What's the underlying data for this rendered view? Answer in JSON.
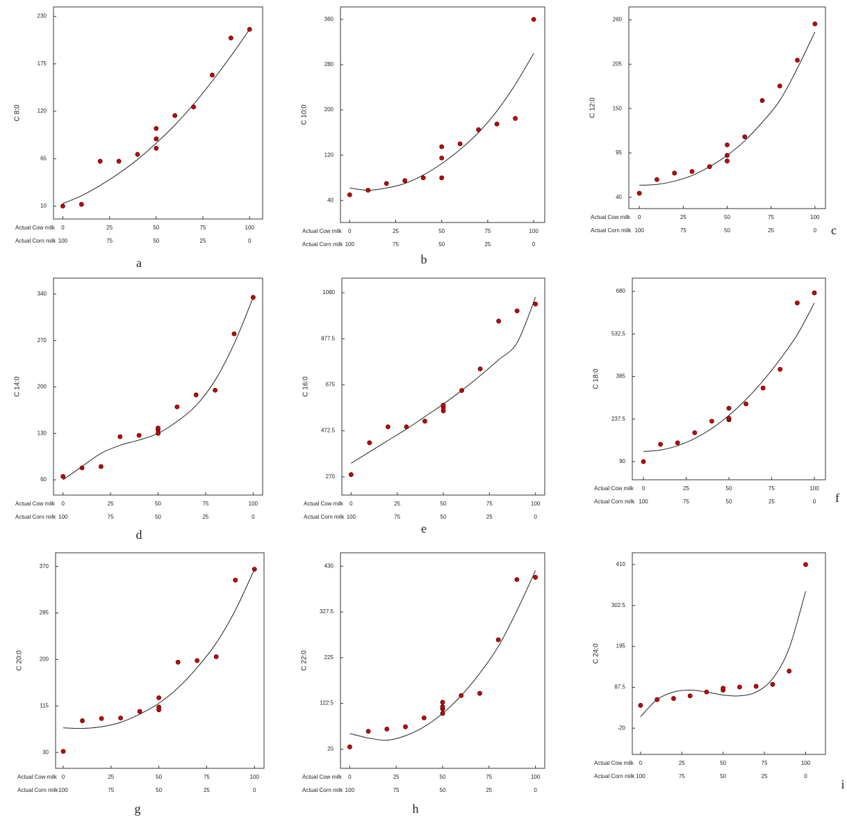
{
  "chart_data": [
    {
      "type": "scatter",
      "panel": "a",
      "ylabel": "C 8:0",
      "xlabel": "Actual Cow milk",
      "x2label": "Actual Corn milk",
      "color": "#cc0000",
      "x": [
        0,
        10,
        20,
        30,
        40,
        50,
        50,
        50,
        60,
        70,
        80,
        90,
        100
      ],
      "y": [
        10,
        12,
        62,
        62,
        70,
        100,
        88,
        77,
        115,
        125,
        162,
        205,
        215
      ],
      "fit": {
        "x": [
          0,
          10,
          20,
          30,
          40,
          50,
          60,
          70,
          80,
          90,
          100
        ],
        "y": [
          13,
          22,
          34,
          48,
          64,
          83,
          104,
          128,
          155,
          184,
          215
        ]
      },
      "xlim": [
        -5,
        107
      ],
      "ylim": [
        -5,
        241
      ],
      "xticks": [
        0,
        25,
        50,
        75,
        100
      ],
      "yticks": [
        10,
        65,
        120,
        175,
        230
      ],
      "x2ticks": [
        {
          "value": 0,
          "label": "100"
        },
        {
          "value": 25,
          "label": "75"
        },
        {
          "value": 50,
          "label": "50"
        },
        {
          "value": 75,
          "label": "25"
        },
        {
          "value": 100,
          "label": "0"
        }
      ]
    },
    {
      "type": "scatter",
      "panel": "b",
      "ylabel": "C 10:0",
      "xlabel": "Actual Cow milk",
      "x2label": "Actual Corn milk",
      "color": "#cc0000",
      "x": [
        0,
        10,
        20,
        30,
        40,
        50,
        50,
        50,
        60,
        70,
        80,
        90,
        100
      ],
      "y": [
        50,
        58,
        70,
        75,
        80,
        80,
        115,
        135,
        140,
        165,
        175,
        185,
        360
      ],
      "fit": {
        "x": [
          0,
          10,
          20,
          30,
          40,
          50,
          60,
          70,
          80,
          90,
          100
        ],
        "y": [
          62,
          58,
          62,
          70,
          85,
          105,
          130,
          160,
          198,
          245,
          300
        ]
      },
      "xlim": [
        -5,
        106
      ],
      "ylim": [
        1,
        382
      ],
      "xticks": [
        0,
        25,
        50,
        75,
        100
      ],
      "yticks": [
        40,
        120,
        200,
        280,
        360
      ],
      "x2ticks": [
        {
          "value": 0,
          "label": "100"
        },
        {
          "value": 25,
          "label": "75"
        },
        {
          "value": 50,
          "label": "50"
        },
        {
          "value": 75,
          "label": "25"
        },
        {
          "value": 100,
          "label": "0"
        }
      ]
    },
    {
      "type": "scatter",
      "panel": "c",
      "ylabel": "C 12:0",
      "xlabel": "Actual Cow milk",
      "x2label": "Actual Corn milk",
      "color": "#cc0000",
      "x": [
        0,
        10,
        20,
        30,
        40,
        50,
        50,
        50,
        60,
        70,
        80,
        90,
        100
      ],
      "y": [
        45,
        62,
        70,
        72,
        78,
        85,
        92,
        105,
        115,
        160,
        178,
        210,
        255
      ],
      "fit": {
        "x": [
          0,
          10,
          20,
          30,
          40,
          50,
          60,
          70,
          80,
          90,
          100
        ],
        "y": [
          55,
          56,
          60,
          67,
          78,
          92,
          110,
          133,
          160,
          200,
          245
        ]
      },
      "xlim": [
        -6,
        106
      ],
      "ylim": [
        26,
        276
      ],
      "xticks": [
        0,
        25,
        50,
        75,
        100
      ],
      "yticks": [
        40,
        95,
        150,
        205,
        260
      ],
      "x2ticks": [
        {
          "value": 0,
          "label": "100"
        },
        {
          "value": 25,
          "label": "75"
        },
        {
          "value": 50,
          "label": "50"
        },
        {
          "value": 75,
          "label": "25"
        },
        {
          "value": 100,
          "label": "0"
        }
      ]
    },
    {
      "type": "scatter",
      "panel": "d",
      "ylabel": "C 14:0",
      "xlabel": "Actual Cow milk",
      "x2label": "Actual Corn milk",
      "color": "#cc0000",
      "x": [
        0,
        10,
        20,
        30,
        40,
        50,
        50,
        50,
        60,
        70,
        80,
        90,
        100
      ],
      "y": [
        65,
        78,
        80,
        125,
        127,
        130,
        135,
        138,
        170,
        188,
        195,
        280,
        335
      ],
      "fit": {
        "x": [
          0,
          10,
          20,
          30,
          40,
          50,
          60,
          70,
          80,
          90,
          100
        ],
        "y": [
          60,
          80,
          100,
          112,
          120,
          130,
          148,
          172,
          210,
          265,
          335
        ]
      },
      "xlim": [
        -5,
        105
      ],
      "ylim": [
        37,
        364
      ],
      "xticks": [
        0,
        25,
        50,
        75,
        100
      ],
      "yticks": [
        60,
        130,
        200,
        270,
        340
      ],
      "x2ticks": [
        {
          "value": 0,
          "label": "100"
        },
        {
          "value": 25,
          "label": "75"
        },
        {
          "value": 50,
          "label": "50"
        },
        {
          "value": 75,
          "label": "25"
        },
        {
          "value": 100,
          "label": "0"
        }
      ]
    },
    {
      "type": "scatter",
      "panel": "e",
      "ylabel": "C 16:0",
      "xlabel": "Actual Cow milk",
      "x2label": "Actual Corn milk",
      "color": "#cc0000",
      "x": [
        0,
        10,
        20,
        30,
        40,
        50,
        50,
        50,
        60,
        70,
        80,
        90,
        100
      ],
      "y": [
        280,
        420,
        490,
        490,
        515,
        560,
        575,
        585,
        650,
        745,
        955,
        1000,
        1030
      ],
      "fit": {
        "x": [
          0,
          10,
          20,
          30,
          40,
          50,
          60,
          70,
          80,
          90,
          100
        ],
        "y": [
          330,
          380,
          430,
          480,
          535,
          590,
          650,
          715,
          785,
          860,
          1060
        ]
      },
      "xlim": [
        -5,
        105
      ],
      "ylim": [
        190,
        1144
      ],
      "xticks": [
        0,
        25,
        50,
        75,
        100
      ],
      "yticks": [
        270,
        472.5,
        675,
        877.5,
        1080
      ],
      "x2ticks": [
        {
          "value": 0,
          "label": "100"
        },
        {
          "value": 25,
          "label": "75"
        },
        {
          "value": 50,
          "label": "50"
        },
        {
          "value": 75,
          "label": "25"
        },
        {
          "value": 100,
          "label": "0"
        }
      ]
    },
    {
      "type": "scatter",
      "panel": "f",
      "ylabel": "C 18:0",
      "xlabel": "Actual Cow milk",
      "x2label": "Actual Corn milk",
      "color": "#cc0000",
      "x": [
        0,
        10,
        20,
        30,
        40,
        50,
        50,
        50,
        60,
        70,
        80,
        90,
        100
      ],
      "y": [
        90,
        150,
        155,
        190,
        230,
        235,
        240,
        275,
        290,
        345,
        410,
        640,
        675
      ],
      "fit": {
        "x": [
          0,
          10,
          20,
          30,
          40,
          50,
          60,
          70,
          80,
          90,
          100
        ],
        "y": [
          125,
          130,
          145,
          170,
          205,
          250,
          305,
          370,
          445,
          530,
          640
        ]
      },
      "xlim": [
        -6.5,
        106.5
      ],
      "ylim": [
        27,
        726
      ],
      "xticks": [
        0,
        25,
        50,
        75,
        100
      ],
      "yticks": [
        90,
        237.5,
        385,
        532.5,
        680
      ],
      "x2ticks": [
        {
          "value": 0,
          "label": "100"
        },
        {
          "value": 25,
          "label": "75"
        },
        {
          "value": 50,
          "label": "50"
        },
        {
          "value": 75,
          "label": "25"
        },
        {
          "value": 100,
          "label": "0"
        }
      ]
    },
    {
      "type": "scatter",
      "panel": "g",
      "ylabel": "C 20:0",
      "xlabel": "Actual Cow milk",
      "x2label": "Actual Corn milk",
      "color": "#cc0000",
      "x": [
        0,
        10,
        20,
        30,
        40,
        50,
        50,
        50,
        60,
        70,
        80,
        90,
        100
      ],
      "y": [
        32,
        88,
        92,
        93,
        105,
        108,
        113,
        130,
        195,
        198,
        205,
        345,
        365
      ],
      "fit": {
        "x": [
          0,
          10,
          20,
          30,
          40,
          50,
          60,
          70,
          80,
          90,
          100
        ],
        "y": [
          75,
          74,
          77,
          85,
          100,
          120,
          148,
          185,
          230,
          290,
          365
        ]
      },
      "xlim": [
        -4,
        105
      ],
      "ylim": [
        1,
        395
      ],
      "xticks": [
        0,
        25,
        50,
        75,
        100
      ],
      "yticks": [
        30,
        115,
        200,
        285,
        370
      ],
      "x2ticks": [
        {
          "value": 0,
          "label": "100"
        },
        {
          "value": 25,
          "label": "75"
        },
        {
          "value": 50,
          "label": "50"
        },
        {
          "value": 75,
          "label": "25"
        },
        {
          "value": 100,
          "label": "0"
        }
      ]
    },
    {
      "type": "scatter",
      "panel": "h",
      "ylabel": "C 22:0",
      "xlabel": "Actual Cow milk",
      "x2label": "Actual Corn milk",
      "color": "#cc0000",
      "x": [
        0,
        10,
        20,
        30,
        40,
        50,
        50,
        50,
        50,
        60,
        70,
        80,
        90,
        100
      ],
      "y": [
        25,
        60,
        65,
        70,
        90,
        100,
        110,
        115,
        125,
        140,
        145,
        265,
        400,
        405
      ],
      "fit": {
        "x": [
          0,
          10,
          20,
          30,
          40,
          50,
          60,
          70,
          80,
          90,
          100
        ],
        "y": [
          55,
          45,
          40,
          50,
          70,
          100,
          140,
          190,
          250,
          330,
          420
        ]
      },
      "xlim": [
        -5,
        105
      ],
      "ylim": [
        -23,
        460
      ],
      "xticks": [
        0,
        25,
        50,
        75,
        100
      ],
      "yticks": [
        20,
        122.5,
        225,
        327.5,
        430
      ],
      "x2ticks": [
        {
          "value": 0,
          "label": "100"
        },
        {
          "value": 25,
          "label": "75"
        },
        {
          "value": 50,
          "label": "50"
        },
        {
          "value": 75,
          "label": "25"
        },
        {
          "value": 100,
          "label": "0"
        }
      ]
    },
    {
      "type": "scatter",
      "panel": "i",
      "ylabel": "C 24:0",
      "xlabel": "Actual Cow milk",
      "x2label": "Actual Corn milk",
      "color": "#cc0000",
      "x": [
        0,
        10,
        20,
        30,
        40,
        50,
        50,
        60,
        70,
        80,
        90,
        100
      ],
      "y": [
        40,
        55,
        58,
        65,
        75,
        80,
        85,
        88,
        90,
        95,
        130,
        410
      ],
      "fit": {
        "x": [
          0,
          10,
          20,
          30,
          40,
          50,
          60,
          70,
          80,
          90,
          100
        ],
        "y": [
          10,
          55,
          75,
          80,
          75,
          67,
          65,
          75,
          110,
          190,
          340
        ]
      },
      "xlim": [
        -5,
        112
      ],
      "ylim": [
        -89,
        441
      ],
      "xticks": [
        0,
        25,
        50,
        75,
        100
      ],
      "yticks": [
        -20,
        87.5,
        195,
        302.5,
        410
      ],
      "x2ticks": [
        {
          "value": 0,
          "label": "100"
        },
        {
          "value": 25,
          "label": "75"
        },
        {
          "value": 50,
          "label": "50"
        },
        {
          "value": 75,
          "label": "25"
        },
        {
          "value": 100,
          "label": "0"
        }
      ]
    }
  ]
}
